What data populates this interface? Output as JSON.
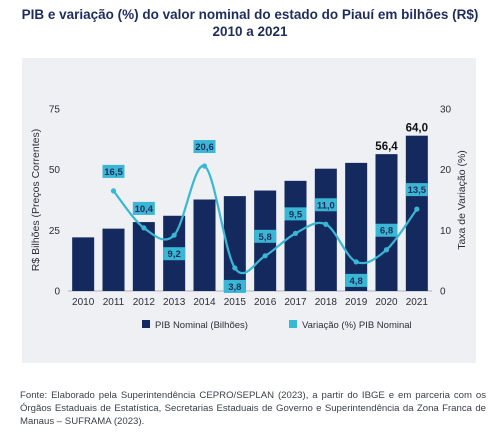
{
  "title_line1": "PIB e variação (%) do valor nominal do estado do Piauí em bilhões (R$)",
  "title_line2": "2010 a 2021",
  "source": "Fonte: Elaborado pela Superintendência CEPRO/SEPLAN (2023), a partir do IBGE e em parceria com os Órgãos Estaduais de Estatística, Secretarias Estaduais de Governo e Superintendência da Zona Franca de Manaus – SUFRAMA (2023).",
  "chart_data": {
    "type": "bar",
    "categories": [
      "2010",
      "2011",
      "2012",
      "2013",
      "2014",
      "2015",
      "2016",
      "2017",
      "2018",
      "2019",
      "2020",
      "2021"
    ],
    "series": [
      {
        "name": "PIB Nominal (Bilhões)",
        "type": "bar",
        "axis": "left",
        "color": "#142a5e",
        "values": [
          22.1,
          25.7,
          28.4,
          31.0,
          37.7,
          39.1,
          41.4,
          45.4,
          50.4,
          52.8,
          56.4,
          64.0
        ],
        "data_labels": [
          "",
          "",
          "",
          "",
          "",
          "",
          "",
          "",
          "",
          "",
          "56,4",
          "64,0"
        ]
      },
      {
        "name": "Variação (%) PIB Nominal",
        "type": "line",
        "axis": "right",
        "color": "#3ab7d4",
        "values": [
          null,
          16.5,
          10.4,
          9.2,
          20.6,
          3.8,
          5.8,
          9.5,
          11.0,
          4.8,
          6.8,
          13.5
        ],
        "data_labels": [
          "",
          "16,5",
          "10,4",
          "9,2",
          "20,6",
          "3,8",
          "5,8",
          "9,5",
          "11,0",
          "4,8",
          "6,8",
          "13,5"
        ]
      }
    ],
    "ylabel": "R$ Bilhões (Preços Correntes)",
    "ylabel_right": "Taxa de Variação (%)",
    "ylim": [
      0,
      75
    ],
    "ylim_right": [
      0,
      30
    ],
    "yticks": [
      "0",
      "25",
      "50",
      "75"
    ],
    "yticks_right": [
      "0",
      "10",
      "20",
      "30"
    ],
    "grid": false,
    "legend_position": "bottom"
  }
}
